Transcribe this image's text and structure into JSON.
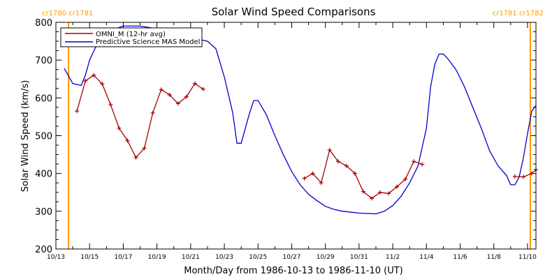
{
  "chart_data": {
    "type": "line",
    "title": "Solar Wind Speed Comparisons",
    "xlabel": "Month/Day from 1986-10-13 to 1986-11-10 (UT)",
    "ylabel": "Solar Wind Speed (km/s)",
    "xlim": [
      "1986-10-13T00:00",
      "1986-11-10T12:00"
    ],
    "ylim": [
      200,
      800
    ],
    "x_ticks": [
      "10/13",
      "10/15",
      "10/17",
      "10/19",
      "10/21",
      "10/23",
      "10/25",
      "10/27",
      "10/29",
      "10/31",
      "11/2",
      "11/4",
      "11/6",
      "11/8",
      "11/10"
    ],
    "y_ticks": [
      200,
      300,
      400,
      500,
      600,
      700,
      800
    ],
    "colors": {
      "omni": "#aa0000",
      "model": "#0000cc",
      "carrington": "#ff9900"
    },
    "carrington_markers": [
      {
        "x": "1986-10-13T18:00",
        "label": "cr1780 cr1781"
      },
      {
        "x": "1986-11-10T04:00",
        "label": "cr1781 cr1782"
      }
    ],
    "series": [
      {
        "name": "OMNI_M (12-hr avg)",
        "segments": [
          [
            [
              "1986-10-14T06:00",
              565
            ],
            [
              "1986-10-14T18:00",
              645
            ],
            [
              "1986-10-15T06:00",
              660
            ],
            [
              "1986-10-15T18:00",
              637
            ],
            [
              "1986-10-16T06:00",
              582
            ],
            [
              "1986-10-16T18:00",
              520
            ],
            [
              "1986-10-17T06:00",
              487
            ],
            [
              "1986-10-17T18:00",
              442
            ],
            [
              "1986-10-18T06:00",
              467
            ],
            [
              "1986-10-18T18:00",
              560
            ],
            [
              "1986-10-19T06:00",
              622
            ],
            [
              "1986-10-19T18:00",
              608
            ],
            [
              "1986-10-20T06:00",
              585
            ],
            [
              "1986-10-20T18:00",
              603
            ],
            [
              "1986-10-21T06:00",
              638
            ],
            [
              "1986-10-21T18:00",
              623
            ]
          ],
          [
            [
              "1986-10-27T18:00",
              387
            ],
            [
              "1986-10-28T06:00",
              400
            ],
            [
              "1986-10-28T18:00",
              375
            ],
            [
              "1986-10-29T06:00",
              462
            ],
            [
              "1986-10-29T18:00",
              432
            ],
            [
              "1986-10-30T06:00",
              420
            ],
            [
              "1986-10-30T18:00",
              400
            ],
            [
              "1986-10-31T06:00",
              352
            ],
            [
              "1986-10-31T18:00",
              334
            ],
            [
              "1986-11-01T06:00",
              350
            ],
            [
              "1986-11-01T18:00",
              347
            ],
            [
              "1986-11-02T06:00",
              365
            ],
            [
              "1986-11-02T18:00",
              385
            ],
            [
              "1986-11-03T06:00",
              432
            ],
            [
              "1986-11-03T18:00",
              424
            ]
          ],
          [
            [
              "1986-11-09T06:00",
              392
            ],
            [
              "1986-11-09T18:00",
              391
            ],
            [
              "1986-11-10T06:00",
              400
            ],
            [
              "1986-11-10T12:00",
              410
            ]
          ]
        ]
      },
      {
        "name": "Predictive Science MAS Model",
        "points": [
          [
            "1986-10-13T12:00",
            678
          ],
          [
            "1986-10-14T00:00",
            638
          ],
          [
            "1986-10-14T12:00",
            633
          ],
          [
            "1986-10-14T18:00",
            660
          ],
          [
            "1986-10-15T00:00",
            700
          ],
          [
            "1986-10-15T12:00",
            748
          ],
          [
            "1986-10-16T00:00",
            775
          ],
          [
            "1986-10-17T00:00",
            790
          ],
          [
            "1986-10-18T00:00",
            790
          ],
          [
            "1986-10-19T00:00",
            783
          ],
          [
            "1986-10-20T00:00",
            770
          ],
          [
            "1986-10-21T00:00",
            760
          ],
          [
            "1986-10-22T00:00",
            750
          ],
          [
            "1986-10-22T12:00",
            730
          ],
          [
            "1986-10-23T00:00",
            655
          ],
          [
            "1986-10-23T12:00",
            560
          ],
          [
            "1986-10-23T18:00",
            480
          ],
          [
            "1986-10-24T00:00",
            480
          ],
          [
            "1986-10-24T12:00",
            560
          ],
          [
            "1986-10-24T18:00",
            593
          ],
          [
            "1986-10-25T00:00",
            593
          ],
          [
            "1986-10-25T12:00",
            555
          ],
          [
            "1986-10-26T00:00",
            500
          ],
          [
            "1986-10-26T12:00",
            450
          ],
          [
            "1986-10-27T00:00",
            405
          ],
          [
            "1986-10-27T12:00",
            370
          ],
          [
            "1986-10-28T00:00",
            345
          ],
          [
            "1986-10-28T12:00",
            328
          ],
          [
            "1986-10-29T00:00",
            313
          ],
          [
            "1986-10-29T12:00",
            305
          ],
          [
            "1986-10-30T00:00",
            300
          ],
          [
            "1986-10-31T00:00",
            295
          ],
          [
            "1986-11-01T00:00",
            293
          ],
          [
            "1986-11-01T12:00",
            300
          ],
          [
            "1986-11-02T00:00",
            315
          ],
          [
            "1986-11-02T12:00",
            340
          ],
          [
            "1986-11-03T00:00",
            375
          ],
          [
            "1986-11-03T12:00",
            420
          ],
          [
            "1986-11-04T00:00",
            520
          ],
          [
            "1986-11-04T06:00",
            630
          ],
          [
            "1986-11-04T12:00",
            690
          ],
          [
            "1986-11-04T18:00",
            716
          ],
          [
            "1986-11-05T00:00",
            716
          ],
          [
            "1986-11-05T06:00",
            705
          ],
          [
            "1986-11-05T18:00",
            675
          ],
          [
            "1986-11-06T06:00",
            630
          ],
          [
            "1986-11-06T18:00",
            575
          ],
          [
            "1986-11-07T06:00",
            520
          ],
          [
            "1986-11-07T18:00",
            460
          ],
          [
            "1986-11-08T06:00",
            420
          ],
          [
            "1986-11-08T18:00",
            395
          ],
          [
            "1986-11-09T00:00",
            370
          ],
          [
            "1986-11-09T06:00",
            370
          ],
          [
            "1986-11-09T12:00",
            390
          ],
          [
            "1986-11-09T18:00",
            440
          ],
          [
            "1986-11-10T00:00",
            505
          ],
          [
            "1986-11-10T06:00",
            565
          ],
          [
            "1986-11-10T12:00",
            580
          ]
        ]
      }
    ]
  }
}
